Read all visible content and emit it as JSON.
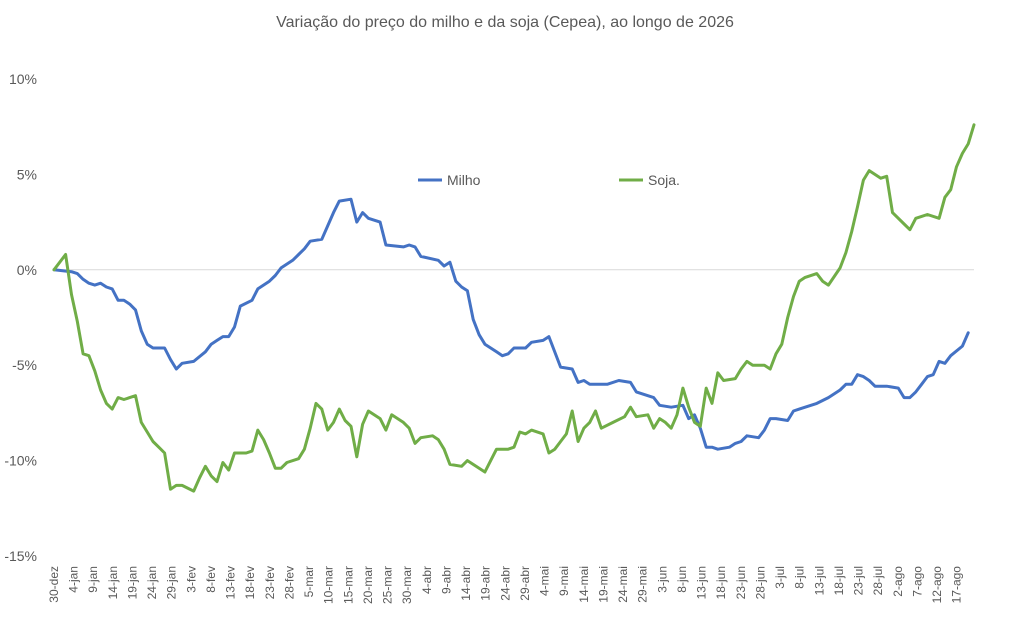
{
  "chart_data": {
    "type": "line",
    "title": "Variação do preço do milho e da soja (Cepea), ao longo de 2026",
    "xlabel": "",
    "ylabel": "",
    "ylim": [
      -15,
      10
    ],
    "yticks": [
      10,
      5,
      0,
      -5,
      -10,
      -15
    ],
    "ytick_labels": [
      "10%",
      "5%",
      "0%",
      "-5%",
      "-10%",
      "-15%"
    ],
    "grid": false,
    "zero_line": true,
    "legend_position": "inside-top-center",
    "categories": [
      "30-dez",
      "4-jan",
      "9-jan",
      "14-jan",
      "19-jan",
      "24-jan",
      "29-jan",
      "3-fev",
      "8-fev",
      "13-fev",
      "18-fev",
      "23-fev",
      "28-fev",
      "5-mar",
      "10-mar",
      "15-mar",
      "20-mar",
      "25-mar",
      "30-mar",
      "4-abr",
      "9-abr",
      "14-abr",
      "19-abr",
      "24-abr",
      "29-abr",
      "4-mai",
      "9-mai",
      "14-mai",
      "19-mai",
      "24-mai",
      "29-mai",
      "3-jun",
      "8-jun",
      "13-jun",
      "18-jun",
      "23-jun",
      "28-jun",
      "3-jul",
      "8-jul",
      "13-jul",
      "18-jul",
      "23-jul",
      "28-jul",
      "2-ago",
      "7-ago",
      "12-ago",
      "17-ago"
    ],
    "series": [
      {
        "name": "Milho",
        "color": "#4472C4",
        "points": [
          [
            0,
            0
          ],
          [
            3,
            -0.1
          ],
          [
            4,
            -0.2
          ],
          [
            5,
            -0.5
          ],
          [
            6,
            -0.7
          ],
          [
            7,
            -0.8
          ],
          [
            8,
            -0.7
          ],
          [
            9,
            -0.9
          ],
          [
            10,
            -1.0
          ],
          [
            11,
            -1.6
          ],
          [
            12,
            -1.6
          ],
          [
            13,
            -1.8
          ],
          [
            14,
            -2.1
          ],
          [
            15,
            -3.2
          ],
          [
            16,
            -3.9
          ],
          [
            17,
            -4.1
          ],
          [
            19,
            -4.1
          ],
          [
            20,
            -4.7
          ],
          [
            21,
            -5.2
          ],
          [
            22,
            -4.9
          ],
          [
            24,
            -4.8
          ],
          [
            26,
            -4.3
          ],
          [
            27,
            -3.9
          ],
          [
            28,
            -3.7
          ],
          [
            29,
            -3.5
          ],
          [
            30,
            -3.5
          ],
          [
            31,
            -3.0
          ],
          [
            32,
            -1.9
          ],
          [
            34,
            -1.6
          ],
          [
            35,
            -1.0
          ],
          [
            37,
            -0.6
          ],
          [
            38,
            -0.3
          ],
          [
            39,
            0.1
          ],
          [
            41,
            0.5
          ],
          [
            42,
            0.8
          ],
          [
            43,
            1.1
          ],
          [
            44,
            1.5
          ],
          [
            46,
            1.6
          ],
          [
            47,
            2.3
          ],
          [
            48,
            3.0
          ],
          [
            49,
            3.6
          ],
          [
            51,
            3.7
          ],
          [
            52,
            2.5
          ],
          [
            53,
            3.0
          ],
          [
            54,
            2.7
          ],
          [
            56,
            2.5
          ],
          [
            57,
            1.3
          ],
          [
            60,
            1.2
          ],
          [
            61,
            1.3
          ],
          [
            62,
            1.2
          ],
          [
            63,
            0.7
          ],
          [
            66,
            0.5
          ],
          [
            67,
            0.2
          ],
          [
            68,
            0.4
          ],
          [
            69,
            -0.6
          ],
          [
            70,
            -0.9
          ],
          [
            71,
            -1.1
          ],
          [
            72,
            -2.6
          ],
          [
            73,
            -3.4
          ],
          [
            74,
            -3.9
          ],
          [
            76,
            -4.3
          ],
          [
            77,
            -4.5
          ],
          [
            78,
            -4.4
          ],
          [
            79,
            -4.1
          ],
          [
            81,
            -4.1
          ],
          [
            82,
            -3.8
          ],
          [
            84,
            -3.7
          ],
          [
            85,
            -3.5
          ],
          [
            87,
            -5.1
          ],
          [
            89,
            -5.2
          ],
          [
            90,
            -5.9
          ],
          [
            91,
            -5.8
          ],
          [
            92,
            -6.0
          ],
          [
            95,
            -6.0
          ],
          [
            97,
            -5.8
          ],
          [
            99,
            -5.9
          ],
          [
            100,
            -6.4
          ],
          [
            101,
            -6.5
          ],
          [
            103,
            -6.7
          ],
          [
            104,
            -7.1
          ],
          [
            106,
            -7.2
          ],
          [
            108,
            -7.1
          ],
          [
            109,
            -7.8
          ],
          [
            110,
            -7.6
          ],
          [
            111,
            -8.3
          ],
          [
            112,
            -9.3
          ],
          [
            113,
            -9.3
          ],
          [
            114,
            -9.4
          ],
          [
            116,
            -9.3
          ],
          [
            117,
            -9.1
          ],
          [
            118,
            -9.0
          ],
          [
            119,
            -8.7
          ],
          [
            121,
            -8.8
          ],
          [
            122,
            -8.4
          ],
          [
            123,
            -7.8
          ],
          [
            124,
            -7.8
          ],
          [
            126,
            -7.9
          ],
          [
            127,
            -7.4
          ],
          [
            128,
            -7.3
          ],
          [
            129,
            -7.2
          ],
          [
            131,
            -7.0
          ],
          [
            133,
            -6.7
          ],
          [
            135,
            -6.3
          ],
          [
            136,
            -6.0
          ],
          [
            137,
            -6.0
          ],
          [
            138,
            -5.5
          ],
          [
            139,
            -5.6
          ],
          [
            140,
            -5.8
          ],
          [
            141,
            -6.1
          ],
          [
            143,
            -6.1
          ],
          [
            145,
            -6.2
          ],
          [
            146,
            -6.7
          ],
          [
            147,
            -6.7
          ],
          [
            148,
            -6.4
          ],
          [
            149,
            -6.0
          ],
          [
            150,
            -5.6
          ],
          [
            151,
            -5.5
          ],
          [
            152,
            -4.8
          ],
          [
            153,
            -4.9
          ],
          [
            154,
            -4.5
          ],
          [
            156,
            -4.0
          ],
          [
            157,
            -3.3
          ]
        ]
      },
      {
        "name": "Soja.",
        "color": "#70AD47",
        "points": [
          [
            0,
            0
          ],
          [
            2,
            0.8
          ],
          [
            3,
            -1.3
          ],
          [
            4,
            -2.7
          ],
          [
            5,
            -4.4
          ],
          [
            6,
            -4.5
          ],
          [
            7,
            -5.3
          ],
          [
            8,
            -6.3
          ],
          [
            9,
            -7.0
          ],
          [
            10,
            -7.3
          ],
          [
            11,
            -6.7
          ],
          [
            12,
            -6.8
          ],
          [
            13,
            -6.7
          ],
          [
            14,
            -6.6
          ],
          [
            15,
            -8.0
          ],
          [
            16,
            -8.5
          ],
          [
            17,
            -9.0
          ],
          [
            18,
            -9.3
          ],
          [
            19,
            -9.6
          ],
          [
            20,
            -11.5
          ],
          [
            21,
            -11.3
          ],
          [
            22,
            -11.3
          ],
          [
            24,
            -11.6
          ],
          [
            25,
            -10.9
          ],
          [
            26,
            -10.3
          ],
          [
            27,
            -10.8
          ],
          [
            28,
            -11.1
          ],
          [
            29,
            -10.1
          ],
          [
            30,
            -10.5
          ],
          [
            31,
            -9.6
          ],
          [
            33,
            -9.6
          ],
          [
            34,
            -9.5
          ],
          [
            35,
            -8.4
          ],
          [
            36,
            -8.9
          ],
          [
            37,
            -9.6
          ],
          [
            38,
            -10.4
          ],
          [
            39,
            -10.4
          ],
          [
            40,
            -10.1
          ],
          [
            42,
            -9.9
          ],
          [
            43,
            -9.4
          ],
          [
            44,
            -8.3
          ],
          [
            45,
            -7.0
          ],
          [
            46,
            -7.3
          ],
          [
            47,
            -8.4
          ],
          [
            48,
            -8.0
          ],
          [
            49,
            -7.3
          ],
          [
            50,
            -7.9
          ],
          [
            51,
            -8.2
          ],
          [
            52,
            -9.8
          ],
          [
            53,
            -8.1
          ],
          [
            54,
            -7.4
          ],
          [
            56,
            -7.8
          ],
          [
            57,
            -8.4
          ],
          [
            58,
            -7.6
          ],
          [
            60,
            -8.0
          ],
          [
            61,
            -8.3
          ],
          [
            62,
            -9.1
          ],
          [
            63,
            -8.8
          ],
          [
            65,
            -8.7
          ],
          [
            66,
            -8.9
          ],
          [
            67,
            -9.4
          ],
          [
            68,
            -10.2
          ],
          [
            70,
            -10.3
          ],
          [
            71,
            -10.0
          ],
          [
            74,
            -10.6
          ],
          [
            75,
            -10.0
          ],
          [
            76,
            -9.4
          ],
          [
            78,
            -9.4
          ],
          [
            79,
            -9.3
          ],
          [
            80,
            -8.5
          ],
          [
            81,
            -8.6
          ],
          [
            82,
            -8.4
          ],
          [
            84,
            -8.6
          ],
          [
            85,
            -9.6
          ],
          [
            86,
            -9.4
          ],
          [
            87,
            -9.0
          ],
          [
            88,
            -8.6
          ],
          [
            89,
            -7.4
          ],
          [
            90,
            -9.0
          ],
          [
            91,
            -8.3
          ],
          [
            92,
            -8.0
          ],
          [
            93,
            -7.4
          ],
          [
            94,
            -8.3
          ],
          [
            96,
            -8.0
          ],
          [
            98,
            -7.7
          ],
          [
            99,
            -7.2
          ],
          [
            100,
            -7.7
          ],
          [
            102,
            -7.6
          ],
          [
            103,
            -8.3
          ],
          [
            104,
            -7.8
          ],
          [
            105,
            -8.0
          ],
          [
            106,
            -8.3
          ],
          [
            107,
            -7.6
          ],
          [
            108,
            -6.2
          ],
          [
            109,
            -7.2
          ],
          [
            110,
            -8.0
          ],
          [
            111,
            -8.2
          ],
          [
            112,
            -6.2
          ],
          [
            113,
            -7.0
          ],
          [
            114,
            -5.4
          ],
          [
            115,
            -5.8
          ],
          [
            117,
            -5.7
          ],
          [
            118,
            -5.2
          ],
          [
            119,
            -4.8
          ],
          [
            120,
            -5.0
          ],
          [
            122,
            -5.0
          ],
          [
            123,
            -5.2
          ],
          [
            124,
            -4.4
          ],
          [
            125,
            -3.9
          ],
          [
            126,
            -2.5
          ],
          [
            127,
            -1.4
          ],
          [
            128,
            -0.6
          ],
          [
            129,
            -0.4
          ],
          [
            131,
            -0.2
          ],
          [
            132,
            -0.6
          ],
          [
            133,
            -0.8
          ],
          [
            135,
            0.1
          ],
          [
            136,
            0.9
          ],
          [
            137,
            2.0
          ],
          [
            138,
            3.3
          ],
          [
            139,
            4.7
          ],
          [
            140,
            5.2
          ],
          [
            142,
            4.8
          ],
          [
            143,
            4.9
          ],
          [
            144,
            3.0
          ],
          [
            146,
            2.4
          ],
          [
            147,
            2.1
          ],
          [
            148,
            2.7
          ],
          [
            149,
            2.8
          ],
          [
            150,
            2.9
          ],
          [
            152,
            2.7
          ],
          [
            153,
            3.8
          ],
          [
            154,
            4.2
          ],
          [
            155,
            5.4
          ],
          [
            156,
            6.1
          ],
          [
            157,
            6.6
          ],
          [
            158,
            7.6
          ]
        ]
      }
    ]
  }
}
